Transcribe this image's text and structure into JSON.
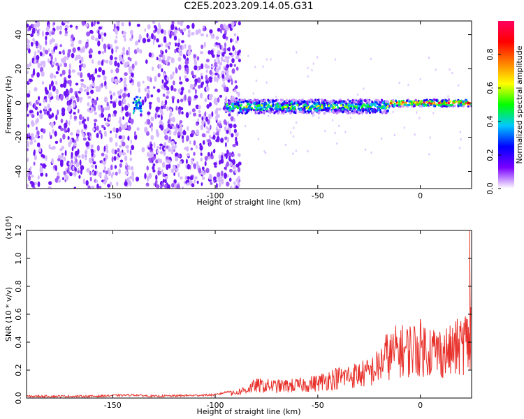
{
  "title": "C2E5.2023.209.14.05.G31",
  "chart_data": [
    {
      "type": "heatmap",
      "xlabel": "Height of straight line (km)",
      "ylabel": "Frequency (Hz)",
      "xlim": [
        -192,
        25
      ],
      "ylim": [
        -50,
        48
      ],
      "x_ticks": [
        -150,
        -100,
        -50,
        0
      ],
      "y_ticks": [
        -40,
        -20,
        0,
        20,
        40
      ],
      "colorbar": {
        "label": "Normalized spectral amplitude",
        "range": [
          0.0,
          1.0
        ],
        "ticks": [
          0.0,
          0.2,
          0.4,
          0.6,
          0.8
        ],
        "colors": [
          "#ffffff",
          "#7a00ff",
          "#0000ff",
          "#00c8ff",
          "#00ff00",
          "#ffff00",
          "#ff8000",
          "#ff0000",
          "#ff0060"
        ]
      },
      "regions": [
        {
          "x_range": [
            -192,
            -88
          ],
          "freq_range": [
            -50,
            48
          ],
          "amplitude": 0.1,
          "description_level": "broadband noise"
        },
        {
          "x_range": [
            -95,
            -15
          ],
          "freq_center": -2,
          "freq_halfwidth": 4,
          "amplitude": 0.5
        },
        {
          "x_range": [
            -15,
            25
          ],
          "freq_center": 0,
          "freq_halfwidth": 2,
          "amplitude": 0.9
        }
      ]
    },
    {
      "type": "line",
      "xlabel": "Height of straight line (km)",
      "ylabel": "SNR (10 * v/v)",
      "y_multiplier": "(x10⁴)",
      "xlim": [
        -192,
        25
      ],
      "ylim": [
        0.0,
        1.2
      ],
      "x_ticks": [
        -150,
        -100,
        -50,
        0
      ],
      "y_ticks": [
        0.0,
        0.2,
        0.4,
        0.6,
        0.8,
        1.0,
        1.2
      ],
      "color": "#e8302a",
      "x": [
        -192,
        -160,
        -140,
        -130,
        -100,
        -92,
        -85,
        -80,
        -70,
        -60,
        -50,
        -45,
        -40,
        -35,
        -30,
        -25,
        -20,
        -17,
        -15,
        -12,
        -10,
        -8,
        -5,
        0,
        5,
        8,
        10,
        15,
        18,
        20,
        22,
        23,
        24
      ],
      "values": [
        0.01,
        0.01,
        0.02,
        0.01,
        0.02,
        0.05,
        0.1,
        0.15,
        0.14,
        0.15,
        0.18,
        0.22,
        0.24,
        0.26,
        0.28,
        0.3,
        0.38,
        0.5,
        0.5,
        0.55,
        0.58,
        0.55,
        0.58,
        0.6,
        0.58,
        0.55,
        0.55,
        0.55,
        0.6,
        0.62,
        0.7,
        0.65,
        0.65
      ]
    }
  ]
}
